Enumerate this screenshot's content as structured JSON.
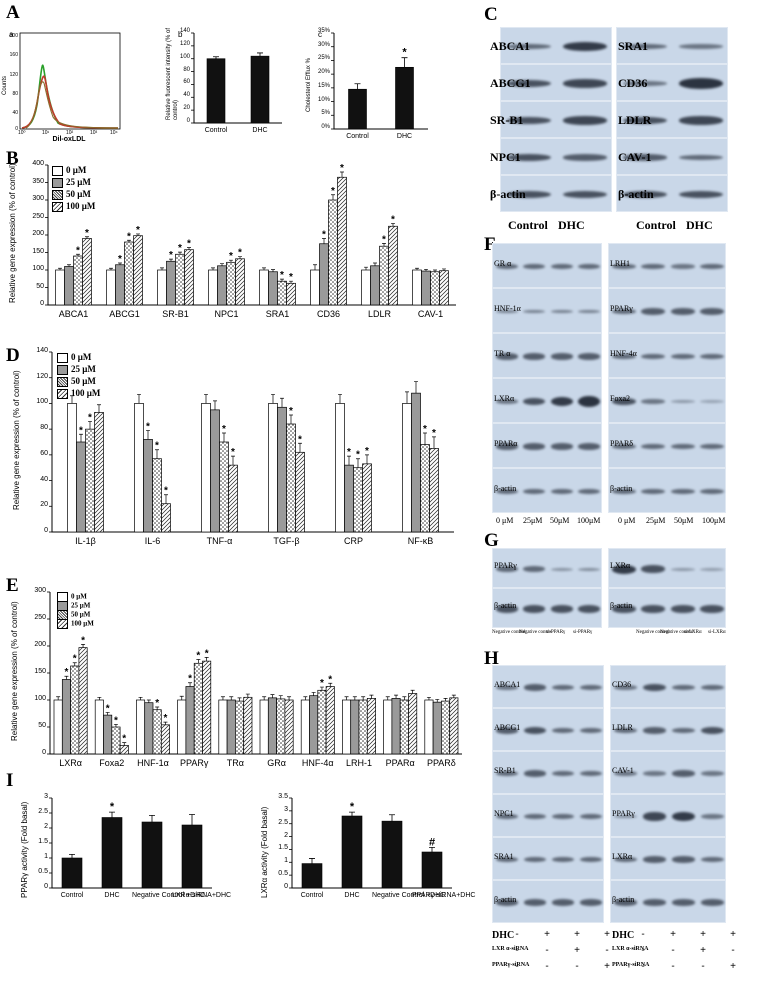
{
  "panels": {
    "A": "A",
    "B": "B",
    "C": "C",
    "D": "D",
    "E": "E",
    "F": "F",
    "G": "G",
    "H": "H",
    "I": "I"
  },
  "panelA": {
    "flow": {
      "sub": "a",
      "ylabel": "Counts",
      "xlabel": "Dil-oxLDL",
      "yticks": [
        "200",
        "160",
        "120",
        "80",
        "40",
        "0"
      ],
      "xticks": [
        "10⁰",
        "10¹",
        "10²",
        "10³",
        "10⁴"
      ]
    },
    "intensity": {
      "sub": "b",
      "ylabel": "Relative fluorescent intensity (% of control)"
    },
    "efflux": {
      "sub": "c",
      "ylabel": "Cholesterol Efflux %"
    }
  },
  "legend_conc": [
    "0 μM",
    "25 μM",
    "50 μM",
    "100 μM"
  ],
  "blotC": {
    "left": [
      "ABCA1",
      "ABCG1",
      "SR-B1",
      "NPC1",
      "β-actin"
    ],
    "right": [
      "SRA1",
      "CD36",
      "LDLR",
      "CAV-1",
      "β-actin"
    ],
    "conditions": [
      "Control",
      "DHC"
    ]
  },
  "blotF": {
    "left": [
      "GR α",
      "HNF-1α",
      "TR α",
      "LXRα",
      "PPARα",
      "β-actin"
    ],
    "right": [
      "LRH1",
      "PPARγ",
      "HNF-4α",
      "Foxa2",
      "PPARδ",
      "β-actin"
    ],
    "lanes": [
      "0 μM",
      "25μM",
      "50μM",
      "100μM"
    ],
    "lanes_right": [
      "0 μM",
      "25μM",
      "50μM",
      "100μM"
    ]
  },
  "blotG": {
    "left": [
      "PPARγ",
      "β-actin"
    ],
    "right": [
      "LXRα",
      "β-actin"
    ],
    "lanes_left": [
      "Negative control",
      "Negative control",
      "si-PPARγ",
      "si-PPARγ"
    ],
    "lanes_right": [
      "Negative control",
      "Negative control",
      "si-LXRα",
      "si-LXRα"
    ]
  },
  "blotH": {
    "left": [
      "ABCA1",
      "ABCG1",
      "SR-B1",
      "NPC1",
      "SRA1",
      "β-actin"
    ],
    "right": [
      "CD36",
      "LDLR",
      "CAV-1",
      "PPARγ",
      "LXRα",
      "β-actin"
    ],
    "row_dhc": "DHC",
    "row_lxr": "LXR α-siRNA",
    "row_ppar": "PPARγ-siRNA",
    "left_signs": {
      "dhc": [
        "-",
        "+",
        "+",
        "+"
      ],
      "lxr": [
        "-",
        "-",
        "+",
        "-"
      ],
      "ppar": [
        "-",
        "-",
        "-",
        "+"
      ]
    },
    "right_signs": {
      "dhc": [
        "-",
        "+",
        "+",
        "+"
      ],
      "lxr": [
        "-",
        "-",
        "+",
        "-"
      ],
      "ppar": [
        "-",
        "-",
        "-",
        "+"
      ]
    }
  },
  "chart_data": [
    {
      "id": "A-b",
      "type": "bar",
      "categories": [
        "Control",
        "DHC"
      ],
      "values": [
        100,
        104
      ],
      "errors": [
        3,
        5
      ],
      "ylabel": "Relative fluorescent intensity (% of control)",
      "ylim": [
        0,
        140
      ],
      "yticks": [
        "140",
        "120",
        "100",
        "80",
        "60",
        "40",
        "20",
        "0"
      ]
    },
    {
      "id": "A-c",
      "type": "bar",
      "categories": [
        "Control",
        "DHC"
      ],
      "values": [
        14.5,
        22.5
      ],
      "errors": [
        2,
        3.5
      ],
      "sig": [
        "",
        "*"
      ],
      "ylabel": "Cholesterol Efflux %",
      "ylim": [
        0,
        35
      ],
      "yticks": [
        "35%",
        "30%",
        "25%",
        "20%",
        "15%",
        "10%",
        "5%",
        "0%"
      ]
    },
    {
      "id": "B",
      "type": "bar",
      "ylabel": "Relative gene expression (% of control)",
      "ylim": [
        0,
        400
      ],
      "yticks": [
        "400",
        "350",
        "300",
        "250",
        "200",
        "150",
        "100",
        "50",
        "0"
      ],
      "categories": [
        "ABCA1",
        "ABCG1",
        "SR-B1",
        "NPC1",
        "SRA1",
        "CD36",
        "LDLR",
        "CAV-1"
      ],
      "series": [
        {
          "name": "0 μM",
          "values": [
            100,
            100,
            100,
            100,
            100,
            100,
            100,
            100
          ]
        },
        {
          "name": "25 μM",
          "values": [
            110,
            115,
            125,
            112,
            95,
            175,
            112,
            97
          ]
        },
        {
          "name": "50 μM",
          "values": [
            140,
            180,
            145,
            122,
            68,
            300,
            168,
            95
          ]
        },
        {
          "name": "100 μM",
          "values": [
            190,
            198,
            158,
            132,
            62,
            365,
            225,
            98
          ]
        }
      ],
      "errors": [
        5,
        5,
        6,
        6,
        6,
        15,
        8,
        5
      ],
      "sig": [
        [
          "",
          "",
          "*",
          "*"
        ],
        [
          "",
          "*",
          "*",
          "*"
        ],
        [
          "",
          "*",
          "*",
          "*"
        ],
        [
          "",
          "",
          "*",
          "*"
        ],
        [
          "",
          "",
          "*",
          "*"
        ],
        [
          "",
          "*",
          "*",
          "*"
        ],
        [
          "",
          "",
          "*",
          "*"
        ],
        [
          "",
          "",
          "",
          ""
        ]
      ]
    },
    {
      "id": "D",
      "type": "bar",
      "ylabel": "Relative gene expression (% of control)",
      "ylim": [
        0,
        140
      ],
      "yticks": [
        "140",
        "120",
        "100",
        "80",
        "60",
        "40",
        "20",
        "0"
      ],
      "categories": [
        "IL-1β",
        "IL-6",
        "TNF-α",
        "TGF-β",
        "CRP",
        "NF-κB"
      ],
      "series": [
        {
          "name": "0 μM",
          "values": [
            100,
            100,
            100,
            100,
            100,
            100
          ]
        },
        {
          "name": "25 μM",
          "values": [
            70,
            72,
            95,
            97,
            52,
            108
          ]
        },
        {
          "name": "50 μM",
          "values": [
            80,
            57,
            70,
            84,
            50,
            68
          ]
        },
        {
          "name": "100 μM",
          "values": [
            93,
            22,
            52,
            62,
            53,
            65
          ]
        }
      ],
      "errors": [
        6,
        7,
        7,
        7,
        7,
        9
      ],
      "sig": [
        [
          "",
          "*",
          "*",
          ""
        ],
        [
          "",
          "*",
          "*",
          "*"
        ],
        [
          "",
          "",
          "*",
          "*"
        ],
        [
          "",
          "",
          "*",
          "*"
        ],
        [
          "",
          "*",
          "*",
          "*"
        ],
        [
          "",
          "",
          "*",
          "*"
        ]
      ]
    },
    {
      "id": "E",
      "type": "bar",
      "ylabel": "Relative gene expression (% of control)",
      "ylim": [
        0,
        300
      ],
      "yticks": [
        "300",
        "250",
        "200",
        "150",
        "100",
        "50",
        "0"
      ],
      "categories": [
        "LXRα",
        "Foxa2",
        "HNF-1α",
        "PPARγ",
        "TRα",
        "GRα",
        "HNF-4α",
        "LRH-1",
        "PPARα",
        "PPARδ"
      ],
      "series": [
        {
          "name": "0 μM",
          "values": [
            100,
            100,
            100,
            100,
            100,
            100,
            100,
            100,
            100,
            100
          ]
        },
        {
          "name": "25 μM",
          "values": [
            138,
            72,
            95,
            125,
            100,
            104,
            108,
            100,
            103,
            96
          ]
        },
        {
          "name": "50 μM",
          "values": [
            163,
            50,
            82,
            168,
            98,
            102,
            118,
            100,
            100,
            98
          ]
        },
        {
          "name": "100 μM",
          "values": [
            197,
            16,
            54,
            172,
            105,
            100,
            125,
            103,
            112,
            104
          ]
        }
      ],
      "errors": [
        6,
        5,
        5,
        7,
        6,
        6,
        6,
        6,
        6,
        5
      ],
      "sig": [
        [
          "",
          "*",
          "*",
          "*"
        ],
        [
          "",
          "*",
          "*",
          "*"
        ],
        [
          "",
          "",
          "*",
          "*"
        ],
        [
          "",
          "*",
          "*",
          "*"
        ],
        [
          "",
          "",
          "",
          ""
        ],
        [
          "",
          "",
          "",
          ""
        ],
        [
          "",
          "",
          "*",
          "*"
        ],
        [
          "",
          "",
          "",
          ""
        ],
        [
          "",
          "",
          "",
          ""
        ],
        [
          "",
          "",
          "",
          ""
        ]
      ]
    },
    {
      "id": "I-left",
      "type": "bar",
      "ylabel": "PPARγ activity (Fold basal)",
      "ylim": [
        0,
        3
      ],
      "yticks": [
        "3",
        "2.5",
        "2",
        "1.5",
        "1",
        "0.5",
        "0"
      ],
      "categories": [
        "Control",
        "DHC",
        "Negative Control +DHC",
        "LXRα-siRNA+DHC"
      ],
      "values": [
        1.0,
        2.35,
        2.2,
        2.1
      ],
      "errors": [
        0.12,
        0.18,
        0.22,
        0.35
      ],
      "sig": [
        "",
        "*",
        "",
        ""
      ]
    },
    {
      "id": "I-right",
      "type": "bar",
      "ylabel": "LXRα activity (Fold basal)",
      "ylim": [
        0,
        3.5
      ],
      "yticks": [
        "3.5",
        "3",
        "2.5",
        "2",
        "1.5",
        "1",
        "0.5",
        "0"
      ],
      "categories": [
        "Control",
        "DHC",
        "Negative Control +DHC",
        "PPARγ-siRNA+DHC"
      ],
      "values": [
        0.95,
        2.8,
        2.6,
        1.4
      ],
      "errors": [
        0.2,
        0.15,
        0.25,
        0.18
      ],
      "sig": [
        "",
        "*",
        "",
        "#"
      ]
    }
  ]
}
